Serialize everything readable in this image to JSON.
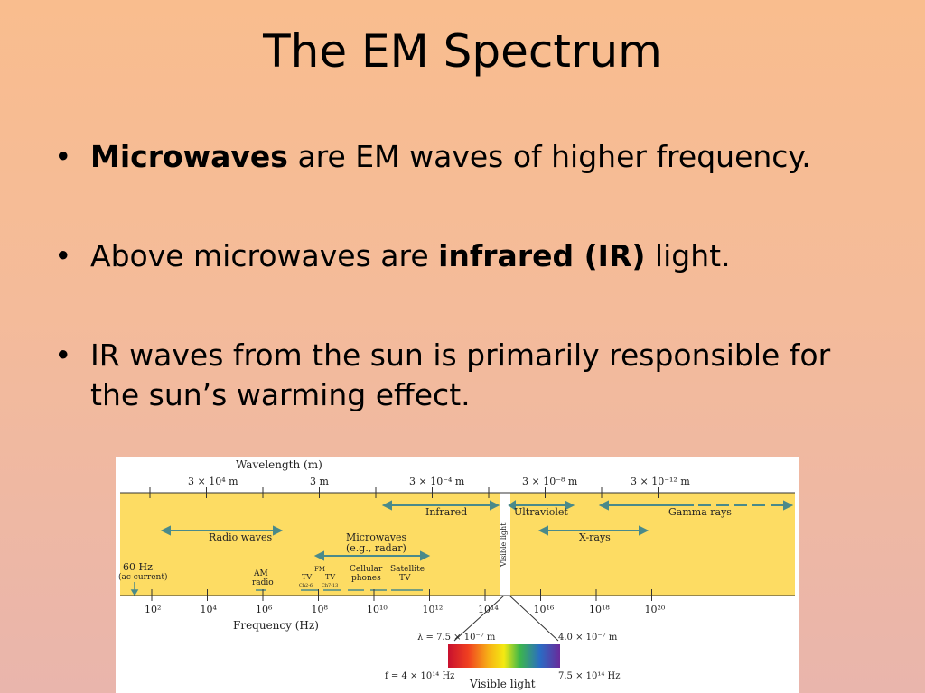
{
  "slide": {
    "title": "The EM Spectrum",
    "bullet_glyph": "•",
    "bullets": [
      {
        "bold": "Microwaves",
        "rest": " are EM waves of higher frequency."
      },
      {
        "pre": "Above microwaves are ",
        "bold": "infrared (IR)",
        "post": " light."
      },
      {
        "text": "IR waves from the sun is primarily responsible for the sun’s warming effect."
      }
    ]
  },
  "figure": {
    "colors": {
      "band": "#fddc63",
      "arrow": "#4a8a8a",
      "tick": "#333333"
    },
    "wavelength_title": "Wavelength (m)",
    "wavelength_labels": [
      "3 × 10⁴ m",
      "3 m",
      "3 × 10⁻⁴ m",
      "3 × 10⁻⁸ m",
      "3 × 10⁻¹² m"
    ],
    "frequency_title": "Frequency (Hz)",
    "frequency_ticks": [
      "10²",
      "10⁴",
      "10⁶",
      "10⁸",
      "10¹⁰",
      "10¹²",
      "10¹⁴",
      "10¹⁶",
      "10¹⁸",
      "10²⁰"
    ],
    "regions": {
      "infrared": "Infrared",
      "ultraviolet": "Ultraviolet",
      "gamma": "Gamma rays",
      "radio": "Radio waves",
      "microwaves": "Microwaves",
      "microwaves_sub": "(e.g., radar)",
      "xrays": "X-rays",
      "visible_vertical": "Visible light"
    },
    "apps": {
      "hz60": "60 Hz",
      "ac": "(ac current)",
      "am1": "AM",
      "am2": "radio",
      "tv": "TV",
      "fm": "FM",
      "tv2": "TV",
      "ch26": "Ch2-6",
      "ch7": "Ch7-13",
      "cell1": "Cellular",
      "cell2": "phones",
      "sat1": "Satellite",
      "sat2": "TV"
    },
    "visible": {
      "lambda_left": "λ = 7.5 × 10⁻⁷ m",
      "lambda_right": "4.0 × 10⁻⁷ m",
      "f_left": "f = 4 × 10¹⁴ Hz",
      "f_right": "7.5 × 10¹⁴ Hz",
      "caption": "Visible light"
    }
  }
}
